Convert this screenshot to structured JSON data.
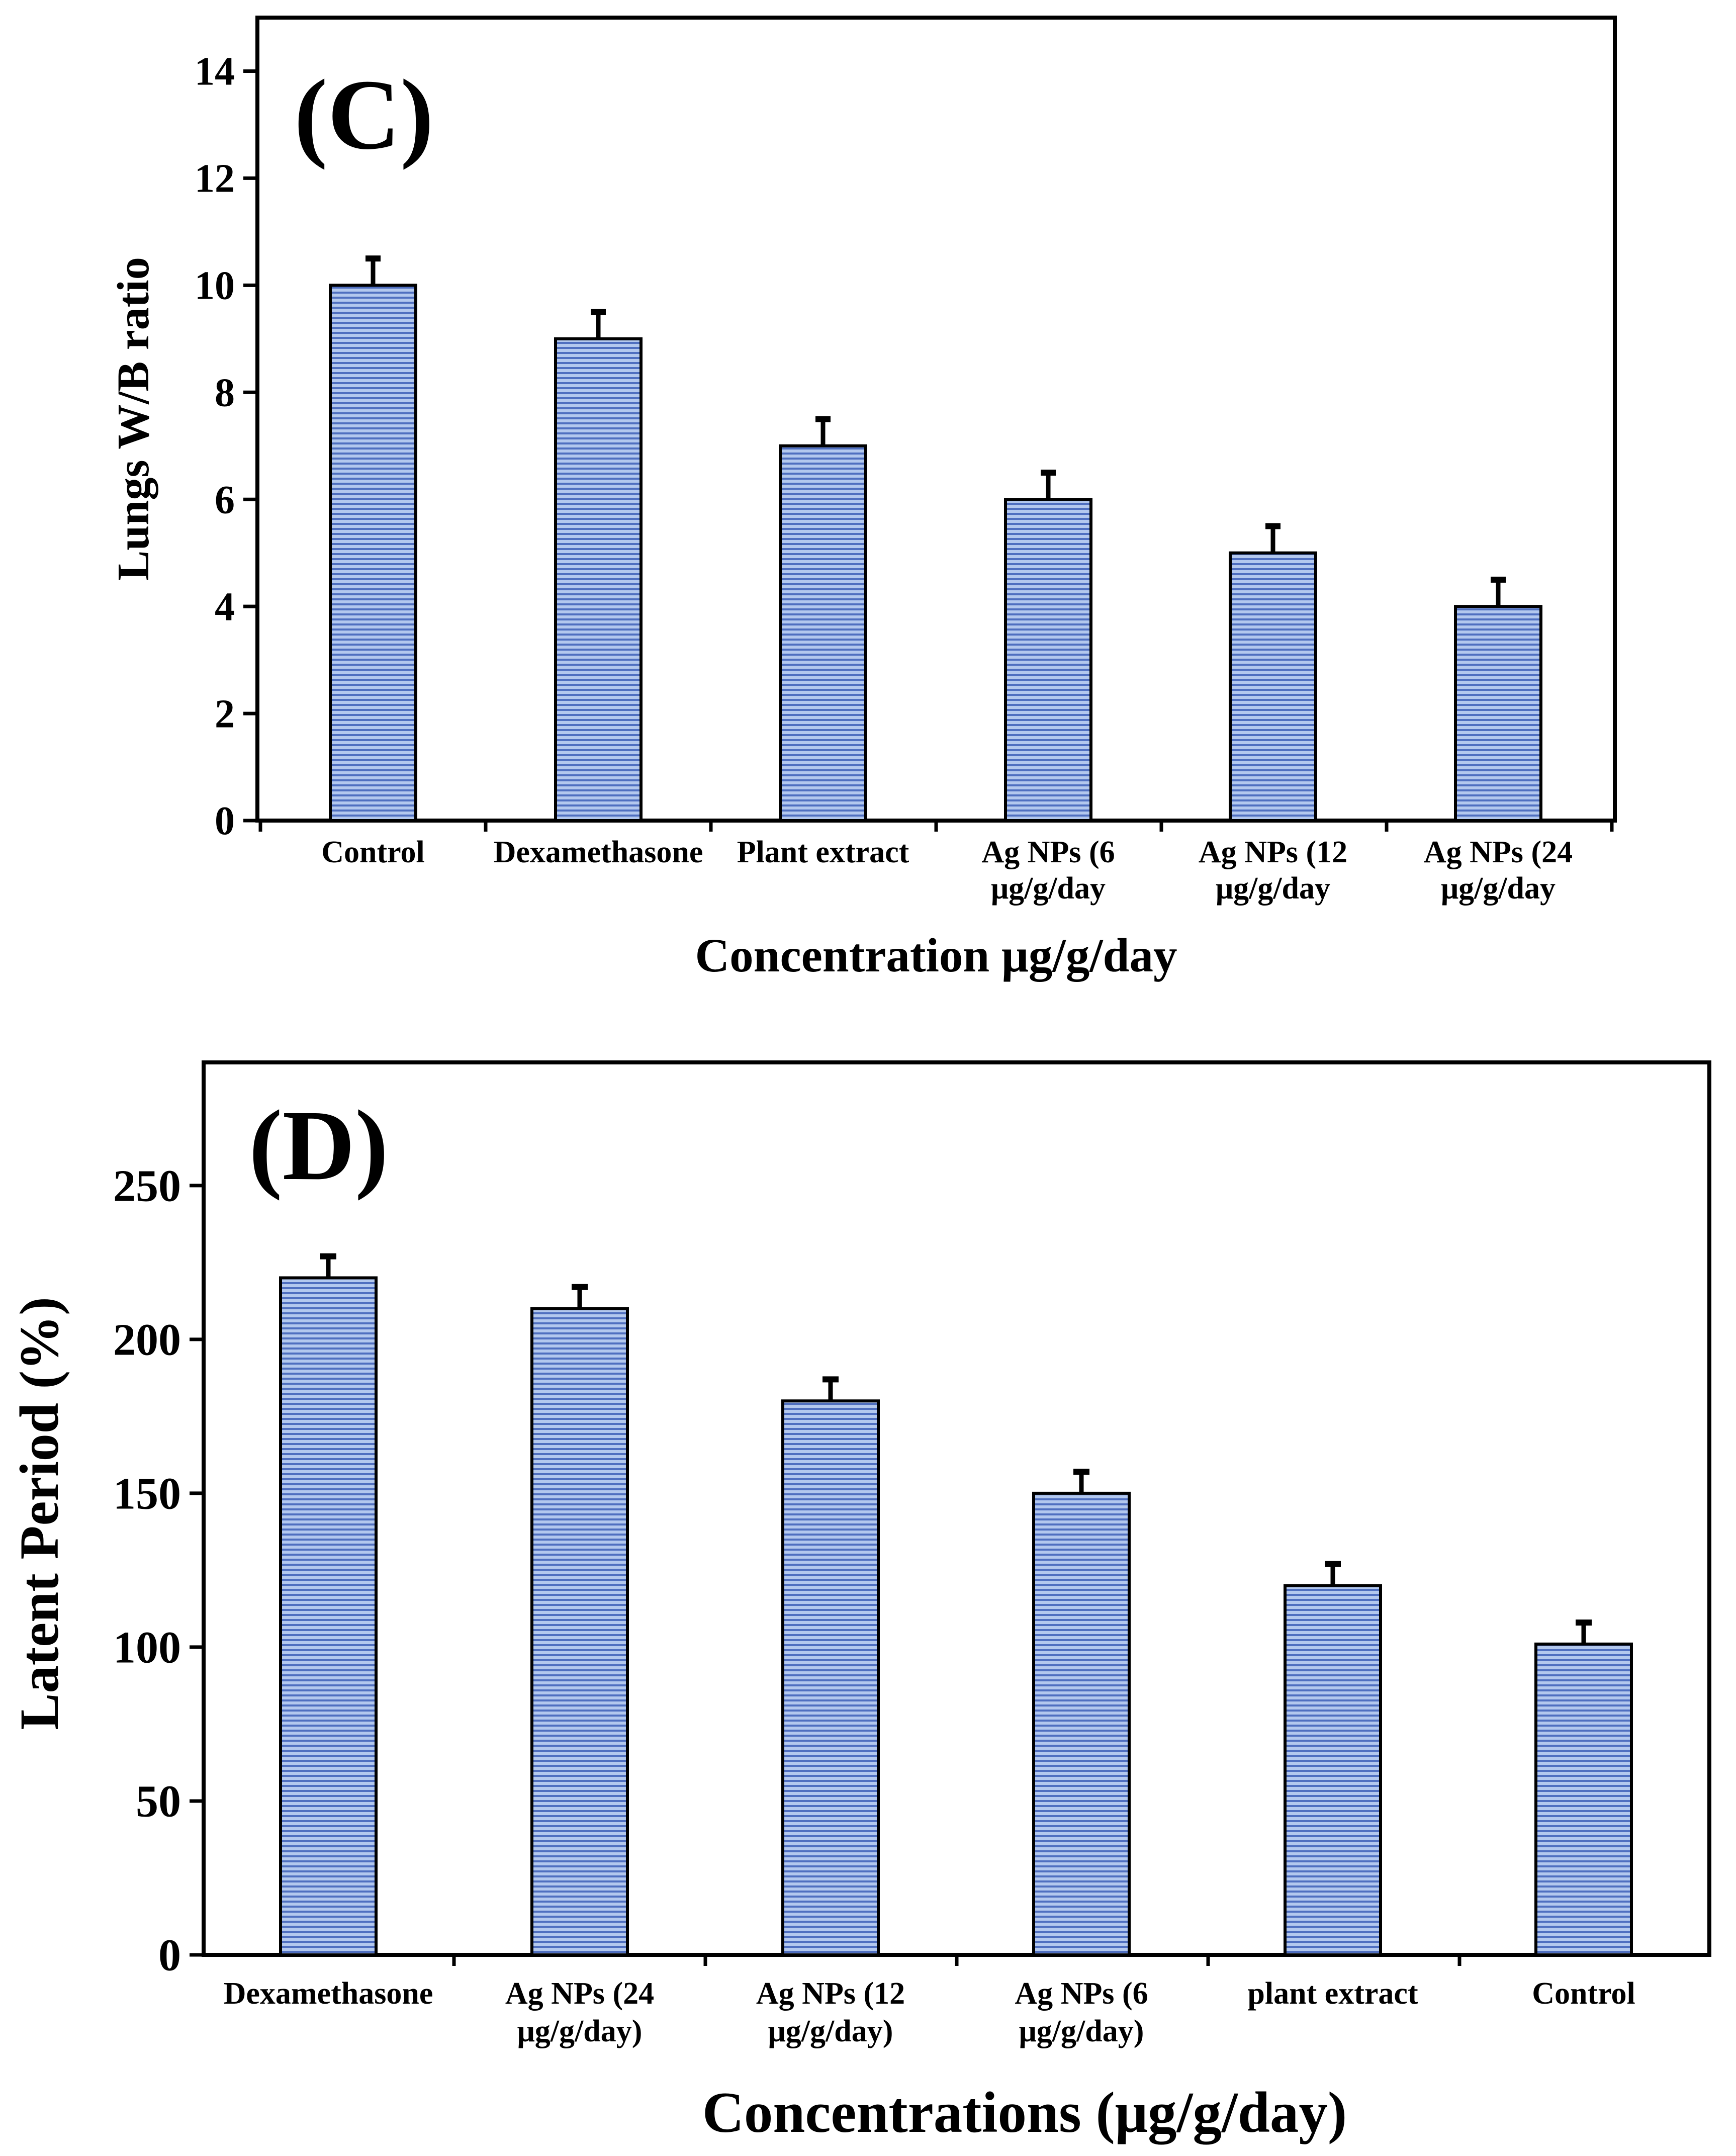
{
  "colors": {
    "bar_fill": "#b3c8ee",
    "bar_stripe": "#4f6fc0",
    "bar_outline": "#000000",
    "error_bar": "#000000",
    "axis": "#000000"
  },
  "chart_data": [
    {
      "type": "bar",
      "panel_label": "(C)",
      "xlabel": "Concentration μg/g/day",
      "ylabel": "Lungs W/B ratio",
      "categories": [
        [
          "Control"
        ],
        [
          "Dexamethasone"
        ],
        [
          "Plant extract"
        ],
        [
          "Ag NPs (6",
          "μg/g/day"
        ],
        [
          "Ag NPs (12",
          "μg/g/day"
        ],
        [
          "Ag NPs (24",
          "μg/g/day"
        ]
      ],
      "values": [
        10,
        9,
        7,
        6,
        5,
        4
      ],
      "errors": [
        0.5,
        0.5,
        0.5,
        0.5,
        0.5,
        0.5
      ],
      "ylim": [
        0,
        15
      ],
      "yticks": [
        0,
        2,
        4,
        6,
        8,
        10,
        12,
        14
      ],
      "grid": false,
      "legend": "none"
    },
    {
      "type": "bar",
      "panel_label": "(D)",
      "xlabel": "Concentrations (μg/g/day)",
      "ylabel": "Latent Period (%)",
      "categories": [
        [
          "Dexamethasone"
        ],
        [
          "Ag NPs (24",
          "μg/g/day)"
        ],
        [
          "Ag NPs (12",
          "μg/g/day)"
        ],
        [
          "Ag NPs (6",
          "μg/g/day)"
        ],
        [
          "plant extract"
        ],
        [
          "Control"
        ]
      ],
      "values": [
        220,
        210,
        180,
        150,
        120,
        101
      ],
      "errors": [
        7,
        7,
        7,
        7,
        7,
        7
      ],
      "ylim": [
        0,
        290
      ],
      "yticks": [
        0,
        50,
        100,
        150,
        200,
        250
      ],
      "grid": false,
      "legend": "none"
    }
  ]
}
